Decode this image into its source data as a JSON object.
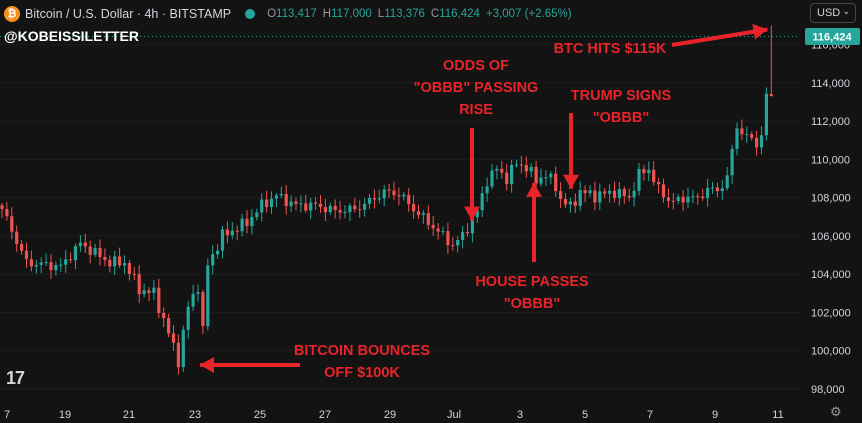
{
  "header": {
    "logo_glyph": "₿",
    "title": "Bitcoin / U.S. Dollar · 4h · BITSTAMP",
    "ohlc": [
      {
        "label": "O",
        "value": "113,417"
      },
      {
        "label": "H",
        "value": "117,000"
      },
      {
        "label": "L",
        "value": "113,376"
      },
      {
        "label": "C",
        "value": "116,424"
      }
    ],
    "change": "+3,007 (+2.65%)",
    "currency": "USD"
  },
  "watermark": "@KOBEISSILETTER",
  "tv_logo": "17",
  "colors": {
    "bg": "#131313",
    "up": "#26a69a",
    "down": "#ef5350",
    "annotation": "#e8242a",
    "price_tag": "#26a69a",
    "axis_text": "#d1d4dc"
  },
  "chart_data": {
    "type": "candlestick",
    "title": "Bitcoin / U.S. Dollar · 4h · BITSTAMP",
    "ylim": [
      97000,
      117600
    ],
    "y_ticks": [
      98000,
      100000,
      102000,
      104000,
      106000,
      108000,
      110000,
      112000,
      114000,
      116000
    ],
    "y_tick_labels": [
      "98,000",
      "100,000",
      "102,000",
      "104,000",
      "106,000",
      "108,000",
      "110,000",
      "112,000",
      "114,000",
      "116,000"
    ],
    "x_tick_labels": [
      "7",
      "19",
      "21",
      "23",
      "25",
      "27",
      "29",
      "Jul",
      "3",
      "5",
      "7",
      "9",
      "11"
    ],
    "last_price": 116424,
    "last_price_label": "116,424",
    "dotted_line_price": 116424,
    "anchors": [
      [
        0,
        107400
      ],
      [
        5,
        104600
      ],
      [
        12,
        104400
      ],
      [
        16,
        105600
      ],
      [
        22,
        104600
      ],
      [
        25,
        104600
      ],
      [
        28,
        103200
      ],
      [
        31,
        103000
      ],
      [
        33,
        101600
      ],
      [
        35,
        100200
      ],
      [
        36,
        99500
      ],
      [
        38,
        102300
      ],
      [
        40,
        103400
      ],
      [
        41,
        101000
      ],
      [
        42,
        104500
      ],
      [
        45,
        106000
      ],
      [
        50,
        106700
      ],
      [
        53,
        107600
      ],
      [
        56,
        108100
      ],
      [
        60,
        107600
      ],
      [
        64,
        107600
      ],
      [
        68,
        107300
      ],
      [
        72,
        107400
      ],
      [
        75,
        107800
      ],
      [
        78,
        108300
      ],
      [
        81,
        108200
      ],
      [
        84,
        107400
      ],
      [
        87,
        106700
      ],
      [
        90,
        106000
      ],
      [
        92,
        105500
      ],
      [
        94,
        106000
      ],
      [
        97,
        107300
      ],
      [
        99,
        108900
      ],
      [
        101,
        109500
      ],
      [
        103,
        109000
      ],
      [
        105,
        109800
      ],
      [
        107,
        109600
      ],
      [
        109,
        108900
      ],
      [
        111,
        109200
      ],
      [
        113,
        108600
      ],
      [
        114,
        107900
      ],
      [
        116,
        107500
      ],
      [
        118,
        108300
      ],
      [
        121,
        108100
      ],
      [
        125,
        108300
      ],
      [
        128,
        108000
      ],
      [
        130,
        109200
      ],
      [
        132,
        109500
      ],
      [
        134,
        108400
      ],
      [
        136,
        107900
      ],
      [
        138,
        107800
      ],
      [
        140,
        108100
      ],
      [
        142,
        107900
      ],
      [
        144,
        108500
      ],
      [
        146,
        108300
      ],
      [
        148,
        109100
      ],
      [
        150,
        111700
      ],
      [
        152,
        111200
      ],
      [
        154,
        110800
      ],
      [
        155,
        111300
      ],
      [
        156,
        113300
      ],
      [
        157,
        116424
      ]
    ],
    "annotations": [
      {
        "text": [
          "BTC HITS $115K"
        ],
        "date_index": 155,
        "price": 117000
      },
      {
        "text": [
          "ODDS OF",
          "\"OBBB\" PASSING",
          "RISE"
        ],
        "date_index": 98,
        "price": 106900
      },
      {
        "text": [
          "TRUMP SIGNS",
          "\"OBBB\""
        ],
        "date_index": 114,
        "price": 108200
      },
      {
        "text": [
          "HOUSE PASSES",
          "\"OBBB\""
        ],
        "date_index": 107,
        "price": 109500
      },
      {
        "text": [
          "BITCOIN BOUNCES",
          "OFF $100K"
        ],
        "date_index": 40,
        "price": 99000
      }
    ]
  }
}
